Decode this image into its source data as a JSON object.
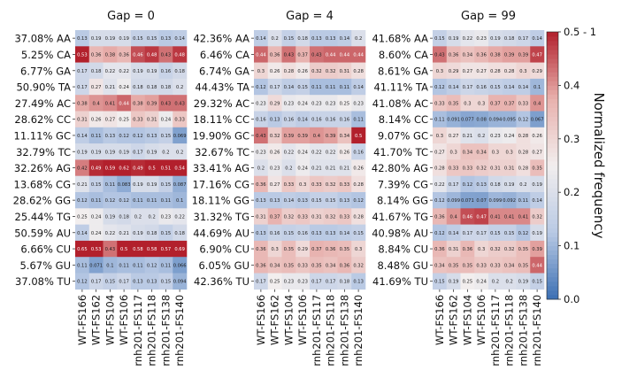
{
  "chart_data": [
    {
      "type": "heatmap",
      "title": "Gap = 0",
      "row_labels": [
        "37.08% AA",
        "5.25% CA",
        "6.77% GA",
        "50.90% TA",
        "27.49% AC",
        "28.62% CC",
        "11.11% GC",
        "32.79% TC",
        "32.26% AG",
        "13.68% CG",
        "28.62% GG",
        "25.44% TG",
        "50.59% AU",
        "6.66% CU",
        "5.67% GU",
        "37.08% TU"
      ],
      "col_labels": [
        "WT-FS166",
        "WT-FS162",
        "WT-FS104",
        "WT-FS106",
        "rnh201-FS117",
        "rnh201-FS118",
        "rnh201-FS138",
        "rnh201-FS140"
      ],
      "values": [
        [
          0.13,
          0.19,
          0.19,
          0.19,
          0.15,
          0.15,
          0.13,
          0.14
        ],
        [
          0.53,
          0.36,
          0.38,
          0.36,
          0.46,
          0.48,
          0.43,
          0.48
        ],
        [
          0.17,
          0.18,
          0.22,
          0.22,
          0.19,
          0.19,
          0.16,
          0.18
        ],
        [
          0.17,
          0.27,
          0.21,
          0.24,
          0.18,
          0.18,
          0.18,
          0.2
        ],
        [
          0.38,
          0.4,
          0.41,
          0.44,
          0.38,
          0.39,
          0.43,
          0.43
        ],
        [
          0.31,
          0.26,
          0.27,
          0.25,
          0.33,
          0.31,
          0.24,
          0.33
        ],
        [
          0.14,
          0.11,
          0.13,
          0.12,
          0.12,
          0.13,
          0.15,
          0.069
        ],
        [
          0.19,
          0.19,
          0.19,
          0.19,
          0.17,
          0.19,
          0.2,
          0.2
        ],
        [
          0.42,
          0.49,
          0.59,
          0.62,
          0.49,
          0.5,
          0.51,
          0.54
        ],
        [
          0.21,
          0.15,
          0.11,
          0.083,
          0.19,
          0.19,
          0.15,
          0.087
        ],
        [
          0.12,
          0.11,
          0.12,
          0.12,
          0.11,
          0.11,
          0.11,
          0.1
        ],
        [
          0.25,
          0.24,
          0.19,
          0.18,
          0.2,
          0.2,
          0.23,
          0.22
        ],
        [
          0.14,
          0.24,
          0.22,
          0.21,
          0.19,
          0.18,
          0.15,
          0.18
        ],
        [
          0.65,
          0.53,
          0.43,
          0.5,
          0.58,
          0.58,
          0.57,
          0.69
        ],
        [
          0.11,
          0.071,
          0.1,
          0.11,
          0.11,
          0.12,
          0.11,
          0.066
        ],
        [
          0.12,
          0.17,
          0.15,
          0.17,
          0.13,
          0.13,
          0.15,
          0.094
        ]
      ],
      "value_range": [
        0.0,
        0.5
      ],
      "grid": false
    },
    {
      "type": "heatmap",
      "title": "Gap = 4",
      "row_labels": [
        "42.36% AA",
        "6.46% CA",
        "6.74% GA",
        "44.43% TA",
        "29.32% AC",
        "18.11% CC",
        "19.90% GC",
        "32.67% TC",
        "33.41% AG",
        "17.16% CG",
        "18.11% GG",
        "31.32% TG",
        "44.69% AU",
        "6.90% CU",
        "6.05% GU",
        "42.36% TU"
      ],
      "col_labels": [
        "WT-FS166",
        "WT-FS162",
        "WT-FS104",
        "WT-FS106",
        "rnh201-FS117",
        "rnh201-FS118",
        "rnh201-FS138",
        "rnh201-FS140"
      ],
      "values": [
        [
          0.14,
          0.2,
          0.15,
          0.18,
          0.13,
          0.13,
          0.14,
          0.2
        ],
        [
          0.44,
          0.36,
          0.43,
          0.37,
          0.43,
          0.44,
          0.44,
          0.44
        ],
        [
          0.3,
          0.26,
          0.28,
          0.26,
          0.32,
          0.32,
          0.31,
          0.28
        ],
        [
          0.12,
          0.17,
          0.14,
          0.15,
          0.11,
          0.11,
          0.11,
          0.14
        ],
        [
          0.23,
          0.29,
          0.23,
          0.24,
          0.23,
          0.23,
          0.25,
          0.23
        ],
        [
          0.16,
          0.13,
          0.16,
          0.14,
          0.16,
          0.16,
          0.16,
          0.11
        ],
        [
          0.43,
          0.32,
          0.39,
          0.39,
          0.4,
          0.39,
          0.34,
          0.5
        ],
        [
          0.23,
          0.26,
          0.22,
          0.24,
          0.22,
          0.22,
          0.26,
          0.16
        ],
        [
          0.2,
          0.23,
          0.2,
          0.24,
          0.21,
          0.21,
          0.21,
          0.26
        ],
        [
          0.36,
          0.27,
          0.33,
          0.3,
          0.33,
          0.32,
          0.33,
          0.28
        ],
        [
          0.13,
          0.13,
          0.14,
          0.13,
          0.15,
          0.15,
          0.13,
          0.12
        ],
        [
          0.31,
          0.37,
          0.32,
          0.33,
          0.31,
          0.32,
          0.33,
          0.28
        ],
        [
          0.13,
          0.16,
          0.15,
          0.16,
          0.13,
          0.13,
          0.14,
          0.15
        ],
        [
          0.36,
          0.3,
          0.35,
          0.29,
          0.37,
          0.36,
          0.35,
          0.3
        ],
        [
          0.36,
          0.34,
          0.35,
          0.33,
          0.35,
          0.34,
          0.36,
          0.32
        ],
        [
          0.17,
          0.25,
          0.23,
          0.23,
          0.17,
          0.17,
          0.18,
          0.13
        ]
      ],
      "value_range": [
        0.0,
        0.5
      ],
      "grid": false
    },
    {
      "type": "heatmap",
      "title": "Gap = 99",
      "row_labels": [
        "41.68% AA",
        "8.60% CA",
        "8.61% GA",
        "41.11% TA",
        "41.08% AC",
        "8.14% CC",
        "9.07% GC",
        "41.70% TC",
        "42.80% AG",
        "7.39% CG",
        "8.14% GG",
        "41.67% TG",
        "40.98% AU",
        "8.84% CU",
        "8.48% GU",
        "41.69% TU"
      ],
      "col_labels": [
        "WT-FS166",
        "WT-FS162",
        "WT-FS104",
        "WT-FS106",
        "rnh201-FS117",
        "rnh201-FS118",
        "rnh201-FS138",
        "rnh201-FS140"
      ],
      "values": [
        [
          0.15,
          0.19,
          0.22,
          0.23,
          0.19,
          0.18,
          0.17,
          0.14
        ],
        [
          0.43,
          0.36,
          0.34,
          0.36,
          0.38,
          0.39,
          0.39,
          0.47
        ],
        [
          0.3,
          0.29,
          0.27,
          0.27,
          0.28,
          0.28,
          0.3,
          0.29
        ],
        [
          0.12,
          0.14,
          0.17,
          0.16,
          0.15,
          0.14,
          0.14,
          0.1
        ],
        [
          0.33,
          0.35,
          0.3,
          0.3,
          0.37,
          0.37,
          0.33,
          0.4
        ],
        [
          0.11,
          0.091,
          0.077,
          0.08,
          0.094,
          0.095,
          0.12,
          0.067
        ],
        [
          0.3,
          0.27,
          0.21,
          0.2,
          0.23,
          0.24,
          0.28,
          0.26
        ],
        [
          0.27,
          0.3,
          0.34,
          0.34,
          0.3,
          0.3,
          0.28,
          0.27
        ],
        [
          0.28,
          0.33,
          0.33,
          0.32,
          0.31,
          0.31,
          0.28,
          0.35
        ],
        [
          0.22,
          0.17,
          0.12,
          0.13,
          0.18,
          0.19,
          0.2,
          0.19
        ],
        [
          0.12,
          0.099,
          0.071,
          0.07,
          0.099,
          0.092,
          0.11,
          0.14
        ],
        [
          0.36,
          0.4,
          0.46,
          0.47,
          0.41,
          0.41,
          0.41,
          0.32
        ],
        [
          0.12,
          0.14,
          0.17,
          0.17,
          0.15,
          0.15,
          0.12,
          0.19
        ],
        [
          0.36,
          0.31,
          0.36,
          0.3,
          0.32,
          0.32,
          0.35,
          0.39
        ],
        [
          0.34,
          0.35,
          0.35,
          0.33,
          0.33,
          0.34,
          0.35,
          0.44
        ],
        [
          0.15,
          0.19,
          0.25,
          0.24,
          0.2,
          0.2,
          0.19,
          0.15
        ]
      ],
      "value_range": [
        0.0,
        0.5
      ],
      "grid": false
    }
  ],
  "colorbar": {
    "label": "Normalized frequency",
    "tick_labels": [
      "0.0",
      "0.1",
      "0.2",
      "0.3",
      "0.4",
      "0.5 - 1"
    ],
    "tick_values": [
      0.0,
      0.1,
      0.2,
      0.3,
      0.4,
      0.5
    ],
    "colors": {
      "low": "#3b6fb3",
      "mid_low": "#b8c9e4",
      "mid": "#f2eeee",
      "mid_high": "#e8b1ad",
      "high": "#b2202c"
    }
  }
}
